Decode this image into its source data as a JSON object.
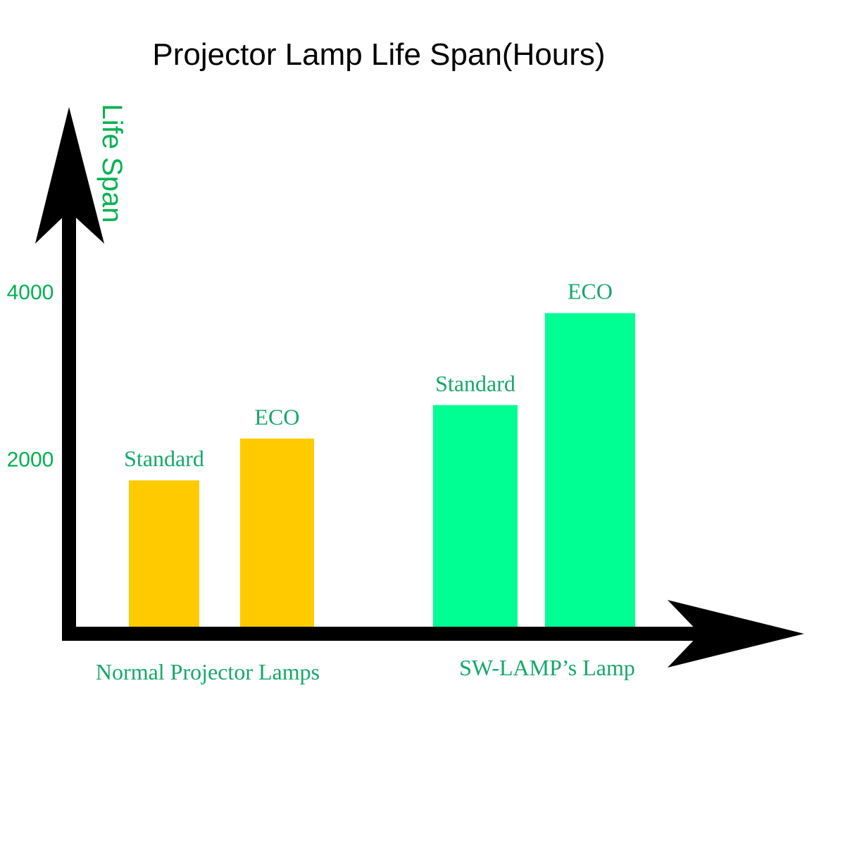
{
  "chart_data": {
    "type": "bar",
    "title": "Projector Lamp Life Span(Hours)",
    "ylabel": "Life Span",
    "xlabel": "",
    "yticks": [
      2000,
      4000
    ],
    "ylim": [
      0,
      6500
    ],
    "groups": [
      {
        "label": "Normal Projector Lamps",
        "color": "#FFCA00",
        "bars": [
          {
            "label": "Standard",
            "value": 1750
          },
          {
            "label": "ECO",
            "value": 2250
          }
        ]
      },
      {
        "label": "SW-LAMP’s Lamp",
        "color": "#00FF93",
        "bars": [
          {
            "label": "Standard",
            "value": 2650
          },
          {
            "label": "ECO",
            "value": 3750
          }
        ]
      }
    ],
    "colors": {
      "axis": "#000000",
      "text_accent": "#00B250",
      "label_teal": "#14A86A"
    }
  }
}
